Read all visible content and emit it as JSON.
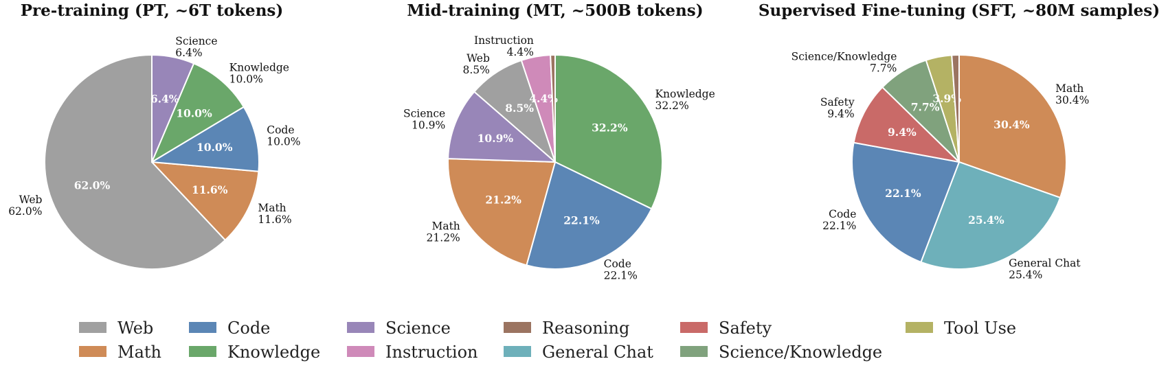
{
  "chart_data": [
    {
      "type": "pie",
      "title": "Pre-training (PT, ~6T tokens)",
      "start_angle_deg": 90,
      "direction": "counterclockwise",
      "slices": [
        {
          "label": "Web",
          "value": 62.0,
          "pct_label": "62.0%",
          "color": "#a0a0a0"
        },
        {
          "label": "Math",
          "value": 11.6,
          "pct_label": "11.6%",
          "color": "#cf8b57"
        },
        {
          "label": "Code",
          "value": 10.0,
          "pct_label": "10.0%",
          "color": "#5b86b5"
        },
        {
          "label": "Knowledge",
          "value": 10.0,
          "pct_label": "10.0%",
          "color": "#6aa76a"
        },
        {
          "label": "Science",
          "value": 6.4,
          "pct_label": "6.4%",
          "color": "#9886b8"
        }
      ]
    },
    {
      "type": "pie",
      "title": "Mid-training (MT, ~500B tokens)",
      "start_angle_deg": 90,
      "direction": "clockwise",
      "slices": [
        {
          "label": "Knowledge",
          "value": 32.2,
          "pct_label": "32.2%",
          "color": "#6aa76a"
        },
        {
          "label": "Code",
          "value": 22.1,
          "pct_label": "22.1%",
          "color": "#5b86b5"
        },
        {
          "label": "Math",
          "value": 21.2,
          "pct_label": "21.2%",
          "color": "#cf8b57"
        },
        {
          "label": "Science",
          "value": 10.9,
          "pct_label": "10.9%",
          "color": "#9886b8"
        },
        {
          "label": "Web",
          "value": 8.5,
          "pct_label": "8.5%",
          "color": "#a0a0a0"
        },
        {
          "label": "Instruction",
          "value": 4.4,
          "pct_label": "4.4%",
          "color": "#cf8ab9"
        },
        {
          "label": "",
          "value": 0.7,
          "pct_label": "",
          "color": "#9b7461"
        }
      ]
    },
    {
      "type": "pie",
      "title": "Supervised Fine-tuning (SFT, ~80M samples)",
      "start_angle_deg": 90,
      "direction": "clockwise",
      "slices": [
        {
          "label": "Math",
          "value": 30.4,
          "pct_label": "30.4%",
          "color": "#cf8b57"
        },
        {
          "label": "General Chat",
          "value": 25.4,
          "pct_label": "25.4%",
          "color": "#6eb0ba"
        },
        {
          "label": "Code",
          "value": 22.1,
          "pct_label": "22.1%",
          "color": "#5b86b5"
        },
        {
          "label": "Safety",
          "value": 9.4,
          "pct_label": "9.4%",
          "color": "#c96a68"
        },
        {
          "label": "Science/Knowledge",
          "value": 7.7,
          "pct_label": "7.7%",
          "color": "#80a27d"
        },
        {
          "label": "",
          "value": 3.9,
          "pct_label": "3.9%",
          "color": "#b4b264"
        },
        {
          "label": "",
          "value": 1.1,
          "pct_label": "",
          "color": "#9b7461"
        }
      ]
    }
  ],
  "legend": {
    "placement": "bottom",
    "items": [
      {
        "label": "Web",
        "color": "#a0a0a0"
      },
      {
        "label": "Math",
        "color": "#cf8b57"
      },
      {
        "label": "Code",
        "color": "#5b86b5"
      },
      {
        "label": "Knowledge",
        "color": "#6aa76a"
      },
      {
        "label": "Science",
        "color": "#9886b8"
      },
      {
        "label": "Instruction",
        "color": "#cf8ab9"
      },
      {
        "label": "Reasoning",
        "color": "#9b7461"
      },
      {
        "label": "General Chat",
        "color": "#6eb0ba"
      },
      {
        "label": "Safety",
        "color": "#c96a68"
      },
      {
        "label": "Science/Knowledge",
        "color": "#80a27d"
      },
      {
        "label": "Tool Use",
        "color": "#b4b264"
      }
    ]
  }
}
